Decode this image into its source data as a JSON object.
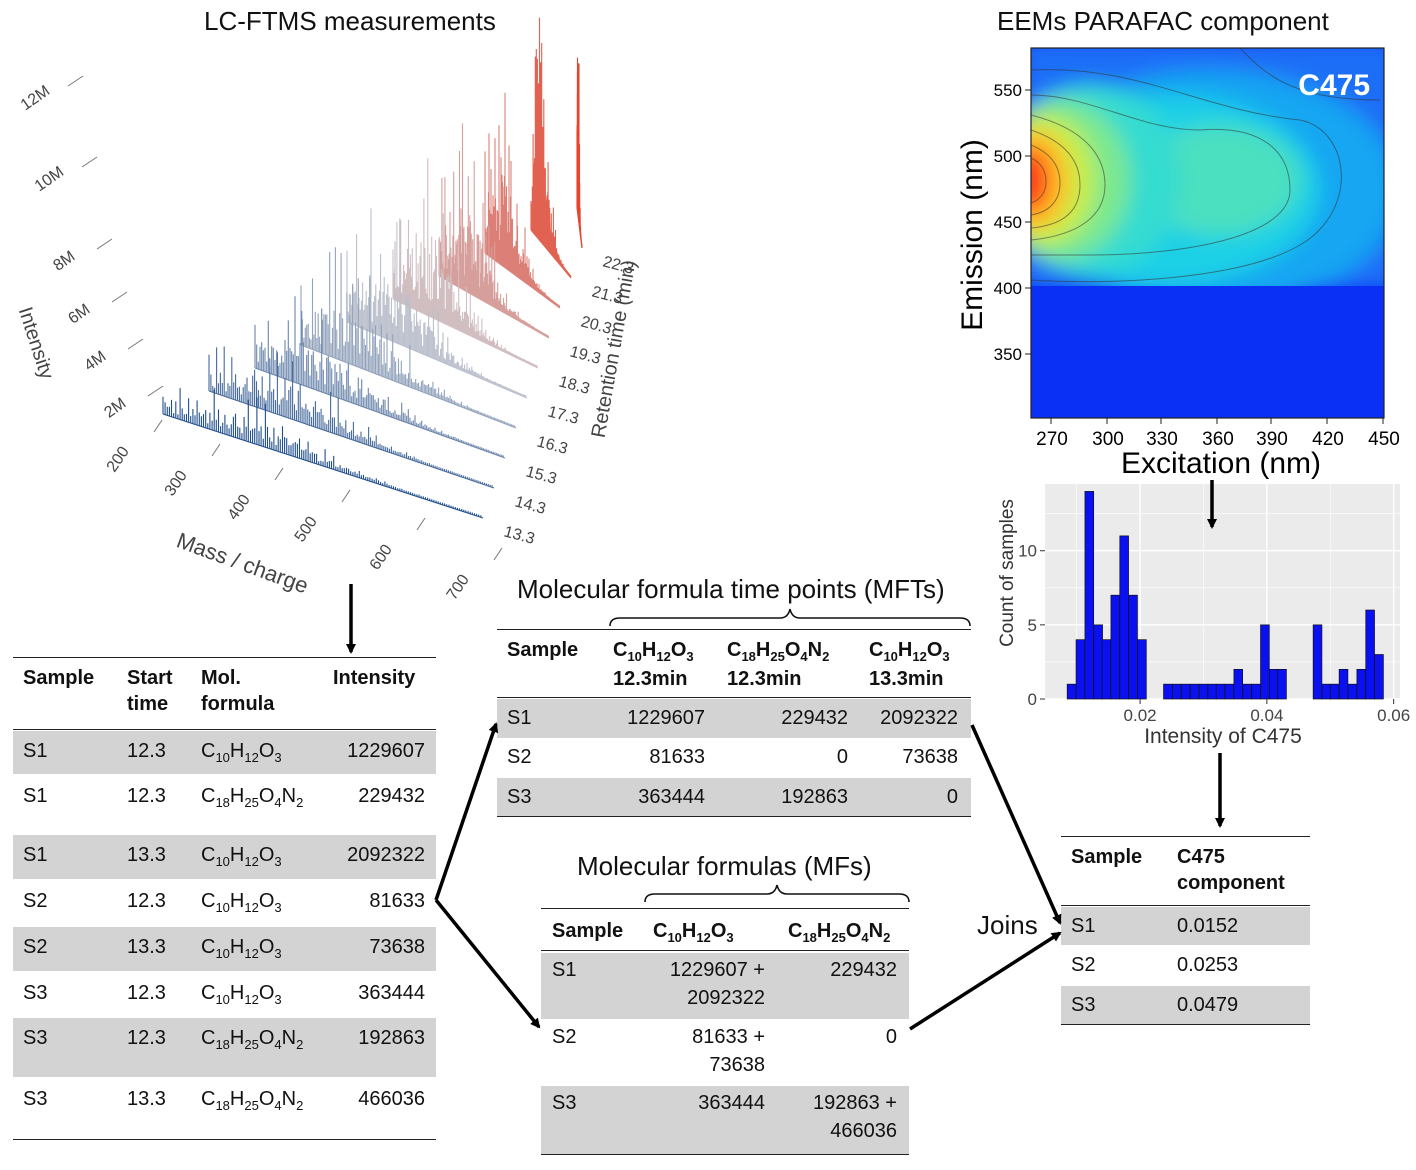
{
  "lcftms": {
    "title": "LC-FTMS measurements",
    "intensity_label": "Intensity",
    "intensity_ticks": [
      "2M",
      "4M",
      "6M",
      "8M",
      "10M",
      "12M"
    ],
    "mz_label": "Mass / charge",
    "mz_ticks": [
      "200",
      "300",
      "400",
      "500",
      "600",
      "700"
    ],
    "rt_label": "Retention time (min)",
    "rt_ticks": [
      "13.3",
      "14.3",
      "15.3",
      "16.3",
      "17.3",
      "18.3",
      "19.3",
      "20.3",
      "21.3",
      "22.3"
    ]
  },
  "eem": {
    "title": "EEMs PARAFAC component",
    "component_label": "C475",
    "ylabel": "Emission (nm)",
    "xlabel": "Excitation (nm)",
    "x_ticks": [
      "270",
      "300",
      "330",
      "360",
      "390",
      "420",
      "450"
    ],
    "y_ticks": [
      "350",
      "400",
      "450",
      "500",
      "550"
    ]
  },
  "chart_data": {
    "type": "bar",
    "title": "",
    "xlabel": "Intensity of C475",
    "ylabel": "Count of samples",
    "x_ticks": [
      "0.02",
      "0.04",
      "0.06"
    ],
    "y_ticks": [
      "0",
      "5",
      "10"
    ],
    "xlim": [
      0.005,
      0.061
    ],
    "ylim": [
      0,
      14.5
    ],
    "bin_width": 0.00138,
    "bin_starts": [
      0.0085,
      0.0099,
      0.0113,
      0.0127,
      0.014,
      0.0154,
      0.0168,
      0.0182,
      0.0196,
      0.021,
      0.0224,
      0.0237,
      0.0251,
      0.0265,
      0.0279,
      0.0293,
      0.0307,
      0.032,
      0.0334,
      0.0348,
      0.0362,
      0.0376,
      0.039,
      0.0404,
      0.0417,
      0.0431,
      0.0445,
      0.0459,
      0.0473,
      0.0487,
      0.05,
      0.0514,
      0.0528,
      0.0542,
      0.0556,
      0.057,
      0.0584,
      0.0597
    ],
    "values": [
      1,
      4,
      14,
      5,
      4,
      7,
      11,
      7,
      4,
      0,
      0,
      1,
      1,
      1,
      1,
      1,
      1,
      1,
      1,
      2,
      1,
      1,
      5,
      2,
      2,
      0,
      0,
      0,
      5,
      1,
      1,
      2,
      1,
      2,
      6,
      3,
      0,
      0
    ]
  },
  "long_table": {
    "headers": [
      "Sample",
      "Start time",
      "Mol. formula",
      "Intensity"
    ],
    "rows": [
      {
        "sample": "S1",
        "time": "12.3",
        "f": [
          "C",
          "10",
          "H",
          "12",
          "O",
          "3"
        ],
        "intensity": "1229607"
      },
      {
        "sample": "S1",
        "time": "12.3",
        "f": [
          "C",
          "18",
          "H",
          "25",
          "O",
          "4",
          "N",
          "2"
        ],
        "intensity": "229432"
      },
      {
        "sample": "S1",
        "time": "13.3",
        "f": [
          "C",
          "10",
          "H",
          "12",
          "O",
          "3"
        ],
        "intensity": "2092322"
      },
      {
        "sample": "S2",
        "time": "12.3",
        "f": [
          "C",
          "10",
          "H",
          "12",
          "O",
          "3"
        ],
        "intensity": "81633"
      },
      {
        "sample": "S2",
        "time": "13.3",
        "f": [
          "C",
          "10",
          "H",
          "12",
          "O",
          "3"
        ],
        "intensity": "73638"
      },
      {
        "sample": "S3",
        "time": "12.3",
        "f": [
          "C",
          "10",
          "H",
          "12",
          "O",
          "3"
        ],
        "intensity": "363444"
      },
      {
        "sample": "S3",
        "time": "12.3",
        "f": [
          "C",
          "18",
          "H",
          "25",
          "O",
          "4",
          "N",
          "2"
        ],
        "intensity": "192863"
      },
      {
        "sample": "S3",
        "time": "13.3",
        "f": [
          "C",
          "18",
          "H",
          "25",
          "O",
          "4",
          "N",
          "2"
        ],
        "intensity": "466036"
      }
    ]
  },
  "mft_table": {
    "title": "Molecular formula time points (MFTs)",
    "sample_header": "Sample",
    "columns": [
      {
        "f": [
          "C",
          "10",
          "H",
          "12",
          "O",
          "3"
        ],
        "time": "12.3min"
      },
      {
        "f": [
          "C",
          "18",
          "H",
          "25",
          "O",
          "4",
          "N",
          "2"
        ],
        "time": "12.3min"
      },
      {
        "f": [
          "C",
          "10",
          "H",
          "12",
          "O",
          "3"
        ],
        "time": "13.3min"
      }
    ],
    "rows": [
      {
        "sample": "S1",
        "v": [
          "1229607",
          "229432",
          "2092322"
        ]
      },
      {
        "sample": "S2",
        "v": [
          "81633",
          "0",
          "73638"
        ]
      },
      {
        "sample": "S3",
        "v": [
          "363444",
          "192863",
          "0"
        ]
      }
    ]
  },
  "mf_table": {
    "title": "Molecular formulas (MFs)",
    "sample_header": "Sample",
    "columns": [
      {
        "f": [
          "C",
          "10",
          "H",
          "12",
          "O",
          "3"
        ]
      },
      {
        "f": [
          "C",
          "18",
          "H",
          "25",
          "O",
          "4",
          "N",
          "2"
        ]
      }
    ],
    "rows": [
      {
        "sample": "S1",
        "v": [
          [
            "1229607 +",
            "2092322"
          ],
          [
            "229432"
          ]
        ]
      },
      {
        "sample": "S2",
        "v": [
          [
            "81633 +",
            "73638"
          ],
          [
            "0"
          ]
        ]
      },
      {
        "sample": "S3",
        "v": [
          [
            "363444"
          ],
          [
            "192863 +",
            "466036"
          ]
        ]
      }
    ]
  },
  "joins_label": "Joins",
  "c475_table": {
    "headers": [
      "Sample",
      "C475 component"
    ],
    "rows": [
      {
        "sample": "S1",
        "value": "0.0152"
      },
      {
        "sample": "S2",
        "value": "0.0253"
      },
      {
        "sample": "S3",
        "value": "0.0479"
      }
    ]
  },
  "colors": {
    "bar_fill": "#0a10f0",
    "grey_row": "#d3d3d3",
    "spectrum_low": "#1f4e8c",
    "spectrum_high": "#e8432c"
  }
}
